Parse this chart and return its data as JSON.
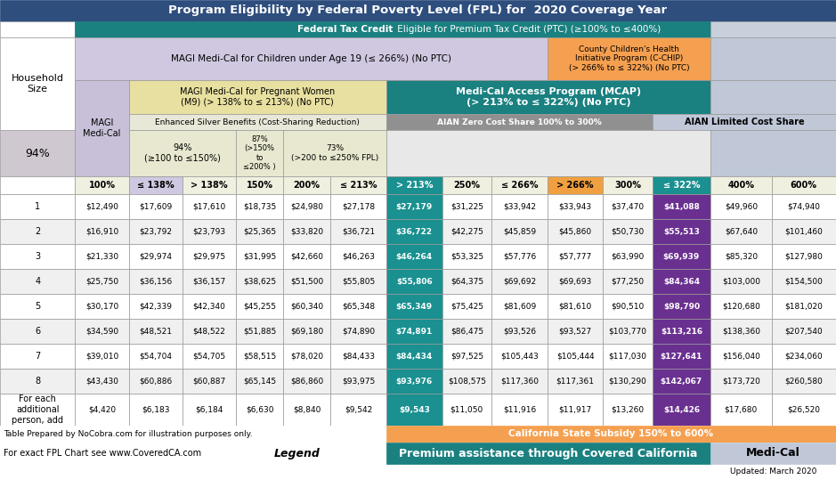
{
  "title": "Program Eligibility by Federal Poverty Level (FPL) for  2020 Coverage Year",
  "col_headers": [
    "100%",
    "≤ 138%",
    "> 138%",
    "150%",
    "200%",
    "≤ 213%",
    "> 213%",
    "250%",
    "≤ 266%",
    "> 266%",
    "300%",
    "≤ 322%",
    "400%",
    "600%"
  ],
  "row_labels": [
    "1",
    "2",
    "3",
    "4",
    "5",
    "6",
    "7",
    "8",
    "For each\nadditional\nperson, add"
  ],
  "data": [
    [
      "$12,490",
      "$17,609",
      "$17,610",
      "$18,735",
      "$24,980",
      "$27,178",
      "$27,179",
      "$31,225",
      "$33,942",
      "$33,943",
      "$37,470",
      "$41,088",
      "$49,960",
      "$74,940"
    ],
    [
      "$16,910",
      "$23,792",
      "$23,793",
      "$25,365",
      "$33,820",
      "$36,721",
      "$36,722",
      "$42,275",
      "$45,859",
      "$45,860",
      "$50,730",
      "$55,513",
      "$67,640",
      "$101,460"
    ],
    [
      "$21,330",
      "$29,974",
      "$29,975",
      "$31,995",
      "$42,660",
      "$46,263",
      "$46,264",
      "$53,325",
      "$57,776",
      "$57,777",
      "$63,990",
      "$69,939",
      "$85,320",
      "$127,980"
    ],
    [
      "$25,750",
      "$36,156",
      "$36,157",
      "$38,625",
      "$51,500",
      "$55,805",
      "$55,806",
      "$64,375",
      "$69,692",
      "$69,693",
      "$77,250",
      "$84,364",
      "$103,000",
      "$154,500"
    ],
    [
      "$30,170",
      "$42,339",
      "$42,340",
      "$45,255",
      "$60,340",
      "$65,348",
      "$65,349",
      "$75,425",
      "$81,609",
      "$81,610",
      "$90,510",
      "$98,790",
      "$120,680",
      "$181,020"
    ],
    [
      "$34,590",
      "$48,521",
      "$48,522",
      "$51,885",
      "$69,180",
      "$74,890",
      "$74,891",
      "$86,475",
      "$93,526",
      "$93,527",
      "$103,770",
      "$113,216",
      "$138,360",
      "$207,540"
    ],
    [
      "$39,010",
      "$54,704",
      "$54,705",
      "$58,515",
      "$78,020",
      "$84,433",
      "$84,434",
      "$97,525",
      "$105,443",
      "$105,444",
      "$117,030",
      "$127,641",
      "$156,040",
      "$234,060"
    ],
    [
      "$43,430",
      "$60,886",
      "$60,887",
      "$65,145",
      "$86,860",
      "$93,975",
      "$93,976",
      "$108,575",
      "$117,360",
      "$117,361",
      "$130,290",
      "$142,067",
      "$173,720",
      "$260,580"
    ],
    [
      "$4,420",
      "$6,183",
      "$6,184",
      "$6,630",
      "$8,840",
      "$9,542",
      "$9,543",
      "$11,050",
      "$11,916",
      "$11,917",
      "$13,260",
      "$14,426",
      "$17,680",
      "$26,520"
    ]
  ],
  "title_color": "#FFFFFF",
  "title_bg": "#2E4E7E",
  "ftc_bg": "#1A8080",
  "ftc_text": "Federal Tax Credit",
  "ftc_text2": " Eligible for Premium Tax Credit (PTC) (≥100% to ≤400%)",
  "magi_children_bg": "#D0C8E0",
  "magi_children_text": "MAGI Medi-Cal for Children under Age 19 (≤ 266%) (No PTC)",
  "cchip_bg": "#F5A050",
  "cchip_text": "County Children's Health\nInitiative Program (C-CHIP)\n(> 266% to ≤ 322%) (No PTC)",
  "right_header_bg": "#C0C8D8",
  "pw_bg": "#E8E0A0",
  "pw_text": "MAGI Medi-Cal for Pregnant Women\n(M9) (> 138% to ≤ 213%) (No PTC)",
  "mcap_bg": "#1A8080",
  "mcap_text": "Medi-Cal Access Program (MCAP)\n(> 213% to ≤ 322%) (No PTC)",
  "magi_mc_bg": "#C8C0D8",
  "magi_mc_text": "MAGI\nMedi-Cal",
  "es_bg": "#E8E8D8",
  "es_text": "Enhanced Silver Benefits (Cost-Sharing Reduction)",
  "aian_zero_bg": "#909090",
  "aian_zero_text": "AIAN Zero Cost Share 100% to 300%",
  "aian_limited_bg": "#C0C8D8",
  "aian_limited_text": "AIAN Limited Cost Share",
  "pct94_bg": "#D0C8D0",
  "e94_bg": "#E8E8D0",
  "e94_text": "94%\n(≥100 to ≤150%)",
  "e87_text": "87%\n(>150%\nto\n≤200% )",
  "e73_text": "73%\n(>200 to ≤250% FPL)",
  "hs_text": "Household\nSize",
  "pct94_text": "94%",
  "col_header_colors": [
    "#F0F0E0",
    "#D0C8E0",
    "#F0F0E0",
    "#F0F0E0",
    "#F0F0E0",
    "#F0F0E0",
    "#1A9090",
    "#F0F0E0",
    "#F0F0E0",
    "#F0A040",
    "#F0F0E0",
    "#1A9090",
    "#F0F0E0",
    "#F0F0E0"
  ],
  "col_header_txt_colors": [
    "#000000",
    "#000000",
    "#000000",
    "#000000",
    "#000000",
    "#000000",
    "#FFFFFF",
    "#000000",
    "#000000",
    "#000000",
    "#000000",
    "#FFFFFF",
    "#000000",
    "#000000"
  ],
  "teal_cell_bg": "#1A9090",
  "purple_cell_bg": "#6A3090",
  "footer_left": "Table Prepared by NoCobra.com for illustration purposes only.",
  "footer_subsidy_bg": "#F5A050",
  "footer_subsidy": "California State Subsidy 150% to 600%",
  "footer_url": "For exact FPL Chart see www.CoveredCA.com",
  "footer_legend": "Legend",
  "footer_covered_bg": "#1A8080",
  "footer_covered": "Premium assistance through Covered California",
  "footer_medcal_bg": "#C0C8D8",
  "footer_medcal": "Medi-Cal",
  "footer_updated": "Updated: March 2020"
}
